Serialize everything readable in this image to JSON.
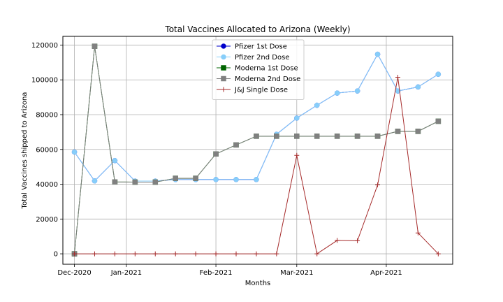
{
  "chart_data": {
    "type": "line",
    "title": "Total Vaccines Allocated to Arizona (Weekly)",
    "xlabel": "Months",
    "ylabel": "Total Vaccines shipped to Arizona",
    "x": [
      "2020-12-14",
      "2020-12-21",
      "2020-12-28",
      "2021-01-04",
      "2021-01-11",
      "2021-01-18",
      "2021-01-25",
      "2021-02-01",
      "2021-02-08",
      "2021-02-15",
      "2021-02-22",
      "2021-03-01",
      "2021-03-08",
      "2021-03-15",
      "2021-03-22",
      "2021-03-29",
      "2021-04-05",
      "2021-04-12",
      "2021-04-19"
    ],
    "xlim": [
      "2020-12-10",
      "2021-04-24"
    ],
    "xticks": [
      {
        "date": "2020-12-14",
        "label": "Dec-2020"
      },
      {
        "date": "2021-01-01",
        "label": "Jan-2021"
      },
      {
        "date": "2021-02-01",
        "label": "Feb-2021"
      },
      {
        "date": "2021-03-01",
        "label": "Mar-2021"
      },
      {
        "date": "2021-04-01",
        "label": "Apr-2021"
      }
    ],
    "ylim": [
      -6000,
      125000
    ],
    "yticks": [
      0,
      20000,
      40000,
      60000,
      80000,
      100000,
      120000
    ],
    "grid": true,
    "legend_position": "top-center",
    "series": [
      {
        "name": "Pfizer 1st Dose",
        "color": "#0000cc",
        "marker": "circle",
        "values": [
          58500,
          41900,
          53600,
          41800,
          41800,
          42700,
          42700,
          42700,
          42700,
          42700,
          68700,
          78000,
          85400,
          92400,
          93600,
          114700,
          93600,
          95900,
          103200
        ]
      },
      {
        "name": "Pfizer 2nd Dose",
        "color": "#87cefa",
        "marker": "circle",
        "values": [
          58500,
          41900,
          53600,
          41800,
          41800,
          42700,
          42700,
          42700,
          42700,
          42700,
          68700,
          78000,
          85400,
          92400,
          93600,
          114700,
          93600,
          95900,
          103200
        ]
      },
      {
        "name": "Moderna 1st Dose",
        "color": "#006400",
        "marker": "square",
        "values": [
          0,
          119300,
          41300,
          41200,
          41200,
          43400,
          43400,
          57400,
          62600,
          67600,
          67600,
          67600,
          67600,
          67600,
          67600,
          67600,
          70400,
          70400,
          76200
        ]
      },
      {
        "name": "Moderna 2nd Dose",
        "color": "#808080",
        "marker": "square",
        "values": [
          0,
          119300,
          41300,
          41200,
          41200,
          43400,
          43400,
          57400,
          62600,
          67600,
          67600,
          67600,
          67600,
          67600,
          67600,
          67600,
          70400,
          70400,
          76200
        ]
      },
      {
        "name": "J&J Single Dose",
        "color": "#a52a2a",
        "marker": "plus",
        "values": [
          0,
          0,
          0,
          0,
          0,
          0,
          0,
          0,
          0,
          0,
          0,
          56600,
          0,
          7700,
          7500,
          39600,
          101500,
          12000,
          0
        ]
      }
    ]
  }
}
